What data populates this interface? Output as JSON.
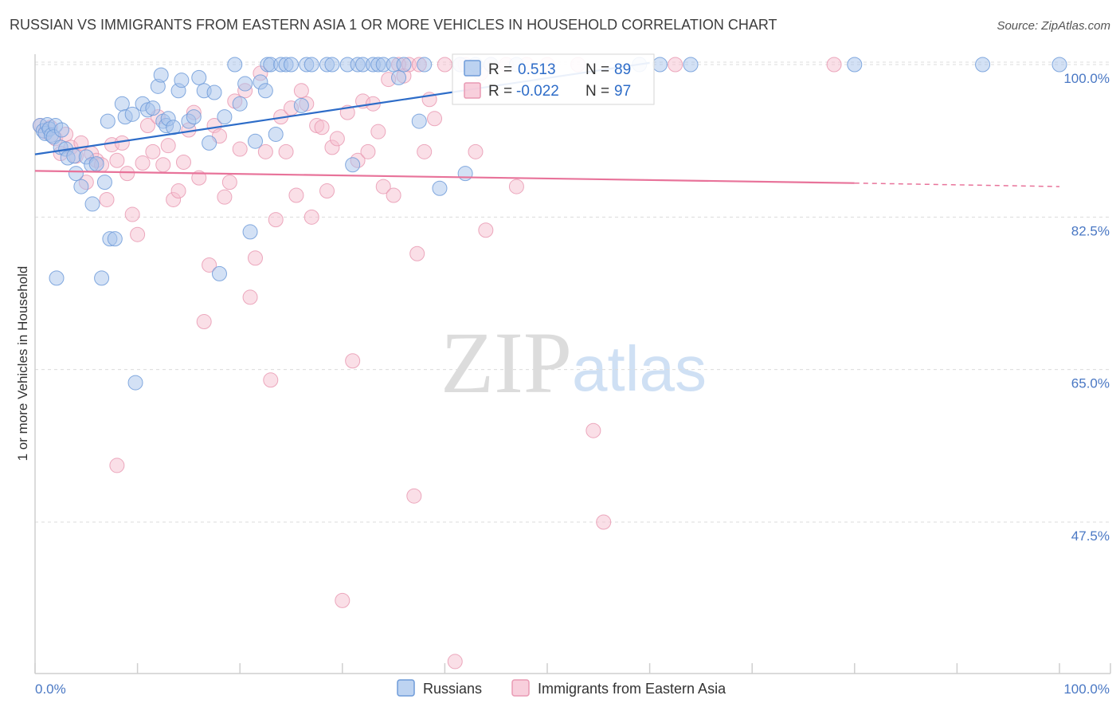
{
  "title": "RUSSIAN VS IMMIGRANTS FROM EASTERN ASIA 1 OR MORE VEHICLES IN HOUSEHOLD CORRELATION CHART",
  "source": "Source: ZipAtlas.com",
  "watermark": {
    "zip": "ZIP",
    "atlas": "atlas"
  },
  "colors": {
    "russians_fill": "#a7c4ec",
    "russians_stroke": "#6e9bd9",
    "russians_line": "#2d6cc8",
    "immigrants_fill": "#f6bfd0",
    "immigrants_stroke": "#e99ab3",
    "immigrants_line": "#e8739a",
    "grid": "#dcdcdc",
    "tick_text": "#4a78c4"
  },
  "legend": {
    "russians": {
      "r_label": "R =",
      "r_value": "0.513",
      "n_label": "N =",
      "n_value": "89"
    },
    "immigrants": {
      "r_label": "R =",
      "r_value": "-0.022",
      "n_label": "N =",
      "n_value": "97"
    }
  },
  "chart_data": {
    "type": "scatter",
    "title": "RUSSIAN VS IMMIGRANTS FROM EASTERN ASIA 1 OR MORE VEHICLES IN HOUSEHOLD CORRELATION CHART",
    "xlabel": "",
    "ylabel": "1 or more Vehicles in Household",
    "xlim": [
      0,
      100
    ],
    "ylim": [
      30,
      102
    ],
    "x_tick_labels": [
      {
        "value": 0,
        "label": "0.0%"
      },
      {
        "value": 100,
        "label": "100.0%"
      }
    ],
    "y_ticks": [
      47.5,
      65.0,
      82.5,
      100.0
    ],
    "y_tick_labels": [
      "47.5%",
      "65.0%",
      "82.5%",
      "100.0%"
    ],
    "grid": true,
    "legend_position": "top-center",
    "series": [
      {
        "name": "Russians",
        "r": 0.513,
        "n": 89,
        "trend": {
          "x0": 0,
          "y0": 89.7,
          "x1": 60,
          "y1": 100.2
        },
        "points": [
          [
            0.5,
            93.0
          ],
          [
            0.8,
            92.4
          ],
          [
            1.0,
            92.1
          ],
          [
            1.2,
            93.1
          ],
          [
            1.4,
            92.6
          ],
          [
            1.6,
            91.9
          ],
          [
            2.0,
            93.0
          ],
          [
            1.8,
            91.7
          ],
          [
            2.5,
            90.5
          ],
          [
            2.6,
            92.5
          ],
          [
            3.0,
            90.3
          ],
          [
            3.2,
            89.3
          ],
          [
            3.8,
            89.5
          ],
          [
            4.0,
            87.5
          ],
          [
            4.5,
            86.0
          ],
          [
            5.0,
            89.4
          ],
          [
            5.5,
            88.5
          ],
          [
            5.6,
            84.0
          ],
          [
            6.0,
            88.6
          ],
          [
            6.5,
            75.5
          ],
          [
            2.1,
            75.5
          ],
          [
            6.8,
            86.5
          ],
          [
            7.1,
            93.5
          ],
          [
            7.3,
            80.0
          ],
          [
            7.8,
            80.0
          ],
          [
            8.5,
            95.5
          ],
          [
            8.8,
            94.0
          ],
          [
            9.5,
            94.3
          ],
          [
            9.8,
            63.5
          ],
          [
            10.5,
            95.5
          ],
          [
            11.0,
            94.8
          ],
          [
            11.5,
            95.0
          ],
          [
            12.0,
            97.5
          ],
          [
            12.3,
            98.8
          ],
          [
            12.5,
            93.5
          ],
          [
            12.8,
            93.0
          ],
          [
            13.0,
            93.8
          ],
          [
            13.5,
            92.8
          ],
          [
            14.0,
            97.0
          ],
          [
            14.3,
            98.2
          ],
          [
            15.0,
            93.5
          ],
          [
            15.5,
            94.0
          ],
          [
            16.0,
            98.5
          ],
          [
            16.5,
            97.0
          ],
          [
            17.0,
            91.0
          ],
          [
            17.5,
            96.8
          ],
          [
            18.0,
            76.0
          ],
          [
            18.5,
            94.0
          ],
          [
            19.5,
            100.0
          ],
          [
            20.0,
            95.5
          ],
          [
            20.5,
            97.8
          ],
          [
            21.0,
            80.8
          ],
          [
            21.5,
            91.2
          ],
          [
            22.0,
            98.0
          ],
          [
            22.5,
            97.0
          ],
          [
            22.7,
            100.0
          ],
          [
            23.0,
            100.0
          ],
          [
            23.5,
            92.0
          ],
          [
            24.0,
            100.0
          ],
          [
            24.5,
            100.0
          ],
          [
            25.0,
            100.0
          ],
          [
            26.0,
            95.3
          ],
          [
            26.5,
            100.0
          ],
          [
            27.0,
            100.0
          ],
          [
            28.5,
            100.0
          ],
          [
            29.0,
            100.0
          ],
          [
            30.5,
            100.0
          ],
          [
            31.0,
            88.5
          ],
          [
            31.5,
            100.0
          ],
          [
            32.0,
            100.0
          ],
          [
            33.0,
            100.0
          ],
          [
            33.5,
            100.0
          ],
          [
            34.0,
            100.0
          ],
          [
            35.0,
            100.0
          ],
          [
            35.5,
            98.5
          ],
          [
            36.0,
            100.0
          ],
          [
            37.5,
            93.5
          ],
          [
            38.0,
            100.0
          ],
          [
            39.5,
            85.8
          ],
          [
            41.5,
            100.0
          ],
          [
            42.0,
            87.5
          ],
          [
            43.0,
            100.0
          ],
          [
            44.5,
            100.0
          ],
          [
            47.0,
            100.0
          ],
          [
            59.0,
            100.0
          ],
          [
            61.0,
            100.0
          ],
          [
            64.0,
            100.0
          ],
          [
            80.0,
            100.0
          ],
          [
            92.5,
            100.0
          ],
          [
            100.0,
            100.0
          ]
        ]
      },
      {
        "name": "Immigrants from Eastern Asia",
        "r": -0.022,
        "n": 97,
        "trend": {
          "x0": 0,
          "y0": 87.8,
          "x1": 80,
          "y1": 86.4,
          "dashed_to_x": 100,
          "dashed_to_y": 86.0
        },
        "points": [
          [
            0.5,
            93.0
          ],
          [
            1.0,
            92.3
          ],
          [
            1.5,
            92.8
          ],
          [
            2.0,
            91.5
          ],
          [
            2.5,
            89.8
          ],
          [
            3.0,
            92.0
          ],
          [
            3.5,
            90.5
          ],
          [
            4.0,
            89.5
          ],
          [
            4.5,
            91.0
          ],
          [
            5.0,
            86.5
          ],
          [
            5.5,
            89.8
          ],
          [
            6.0,
            89.0
          ],
          [
            6.5,
            88.5
          ],
          [
            7.0,
            84.5
          ],
          [
            7.5,
            90.8
          ],
          [
            8.0,
            89.0
          ],
          [
            8.5,
            91.0
          ],
          [
            9.0,
            87.5
          ],
          [
            9.5,
            82.8
          ],
          [
            8.0,
            54.0
          ],
          [
            10.0,
            80.5
          ],
          [
            10.5,
            88.7
          ],
          [
            11.0,
            93.0
          ],
          [
            11.5,
            90.0
          ],
          [
            12.0,
            94.0
          ],
          [
            12.5,
            88.5
          ],
          [
            13.0,
            90.7
          ],
          [
            13.5,
            84.5
          ],
          [
            14.0,
            85.5
          ],
          [
            14.5,
            88.8
          ],
          [
            15.0,
            92.5
          ],
          [
            15.5,
            94.5
          ],
          [
            16.0,
            87.0
          ],
          [
            16.5,
            70.5
          ],
          [
            17.0,
            77.0
          ],
          [
            17.5,
            93.0
          ],
          [
            18.0,
            91.8
          ],
          [
            18.5,
            84.8
          ],
          [
            19.0,
            86.5
          ],
          [
            19.5,
            95.8
          ],
          [
            20.0,
            90.3
          ],
          [
            20.5,
            97.0
          ],
          [
            21.0,
            73.3
          ],
          [
            21.5,
            77.8
          ],
          [
            22.0,
            99.0
          ],
          [
            22.5,
            90.0
          ],
          [
            23.0,
            63.8
          ],
          [
            23.5,
            82.2
          ],
          [
            24.0,
            94.0
          ],
          [
            24.5,
            90.0
          ],
          [
            25.0,
            95.0
          ],
          [
            25.5,
            85.0
          ],
          [
            26.0,
            97.0
          ],
          [
            26.5,
            95.5
          ],
          [
            27.0,
            82.5
          ],
          [
            27.5,
            93.0
          ],
          [
            28.0,
            92.8
          ],
          [
            28.5,
            85.5
          ],
          [
            29.0,
            90.5
          ],
          [
            29.5,
            91.5
          ],
          [
            30.0,
            38.5
          ],
          [
            30.5,
            94.5
          ],
          [
            31.0,
            66.0
          ],
          [
            31.5,
            89.0
          ],
          [
            32.0,
            95.8
          ],
          [
            32.5,
            90.0
          ],
          [
            33.0,
            95.5
          ],
          [
            33.5,
            92.3
          ],
          [
            34.0,
            86.0
          ],
          [
            34.5,
            98.3
          ],
          [
            35.0,
            85.0
          ],
          [
            35.5,
            100.0
          ],
          [
            36.0,
            98.7
          ],
          [
            36.5,
            100.0
          ],
          [
            37.0,
            50.5
          ],
          [
            37.3,
            78.3
          ],
          [
            37.5,
            100.0
          ],
          [
            38.0,
            90.0
          ],
          [
            38.5,
            96.0
          ],
          [
            39.0,
            93.8
          ],
          [
            40.0,
            100.0
          ],
          [
            41.0,
            31.5
          ],
          [
            41.5,
            100.0
          ],
          [
            42.0,
            100.0
          ],
          [
            43.0,
            90.0
          ],
          [
            43.5,
            99.0
          ],
          [
            44.0,
            81.0
          ],
          [
            44.5,
            100.0
          ],
          [
            46.0,
            100.0
          ],
          [
            47.0,
            86.0
          ],
          [
            48.0,
            100.0
          ],
          [
            50.0,
            100.0
          ],
          [
            53.0,
            100.0
          ],
          [
            54.5,
            58.0
          ],
          [
            55.5,
            47.5
          ],
          [
            62.5,
            100.0
          ],
          [
            78.0,
            100.0
          ]
        ]
      }
    ]
  }
}
